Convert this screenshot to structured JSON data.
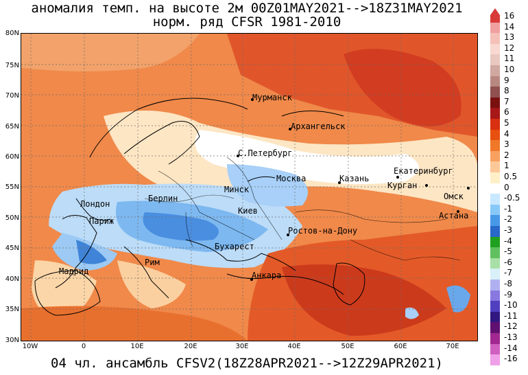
{
  "title_line1": "аномалия темп. на высоте 2м 00Z01MAY2021-->18Z31MAY2021",
  "title_line2": "норм. ряд CFSR 1981-2010",
  "footer": "04 чл. ансамбль CFSV2(18Z28APR2021-->12Z29APR2021)",
  "lat_labels": [
    "80N",
    "75N",
    "70N",
    "65N",
    "60N",
    "55N",
    "50N",
    "45N",
    "40N",
    "35N",
    "30N"
  ],
  "lon_labels": [
    "10W",
    "0",
    "10E",
    "20E",
    "30E",
    "40E",
    "50E",
    "60E",
    "70E"
  ],
  "cities": [
    {
      "id": "murmansk",
      "name": "Мурманск"
    },
    {
      "id": "arkhangelsk",
      "name": "Архангельск"
    },
    {
      "id": "spb",
      "name": "С.Петербург"
    },
    {
      "id": "ekaterinburg",
      "name": "Екатеринбург"
    },
    {
      "id": "moscow",
      "name": "Москва"
    },
    {
      "id": "kazan",
      "name": "Казань"
    },
    {
      "id": "kurgan",
      "name": "Курган"
    },
    {
      "id": "minsk",
      "name": "Минск"
    },
    {
      "id": "omsk",
      "name": "Омск"
    },
    {
      "id": "london",
      "name": "Лондон"
    },
    {
      "id": "berlin",
      "name": "Берлин"
    },
    {
      "id": "kiev",
      "name": "Киев"
    },
    {
      "id": "astana",
      "name": "Астана"
    },
    {
      "id": "paris",
      "name": "Париж"
    },
    {
      "id": "rostov",
      "name": "Ростов-на-Дону"
    },
    {
      "id": "bucharest",
      "name": "Бухарест"
    },
    {
      "id": "rome",
      "name": "Рим"
    },
    {
      "id": "madrid",
      "name": "Мадрид"
    },
    {
      "id": "ankara",
      "name": "Анкара"
    }
  ],
  "legend": {
    "labels": [
      "16",
      "14",
      "13",
      "12",
      "11",
      "10",
      "9",
      "8",
      "7",
      "6",
      "5",
      "4",
      "3",
      "2",
      "1",
      "0.5",
      "0",
      "-0.5",
      "-1",
      "-2",
      "-3",
      "-4",
      "-5",
      "-6",
      "-7",
      "-8",
      "-9",
      "-10",
      "-11",
      "-12",
      "-13",
      "-14",
      "-16"
    ],
    "colors": [
      "#d83a3a",
      "#f0a0a0",
      "#f4c0b8",
      "#f8d8d0",
      "#e8c8c0",
      "#d0a8a0",
      "#b88880",
      "#905050",
      "#7a1010",
      "#a81818",
      "#d83010",
      "#e85010",
      "#f07828",
      "#f8a060",
      "#fcc898",
      "#fff0c8",
      "#ffffff",
      "#c8e8ff",
      "#88c8f8",
      "#4898e8",
      "#2868c8",
      "#20a020",
      "#60c060",
      "#a8e0a8",
      "#d8f0f8",
      "#b0b0f0",
      "#8878e0",
      "#5040c0",
      "#301880",
      "#601070",
      "#a02890",
      "#d060c0",
      "#f0a0e8"
    ]
  }
}
